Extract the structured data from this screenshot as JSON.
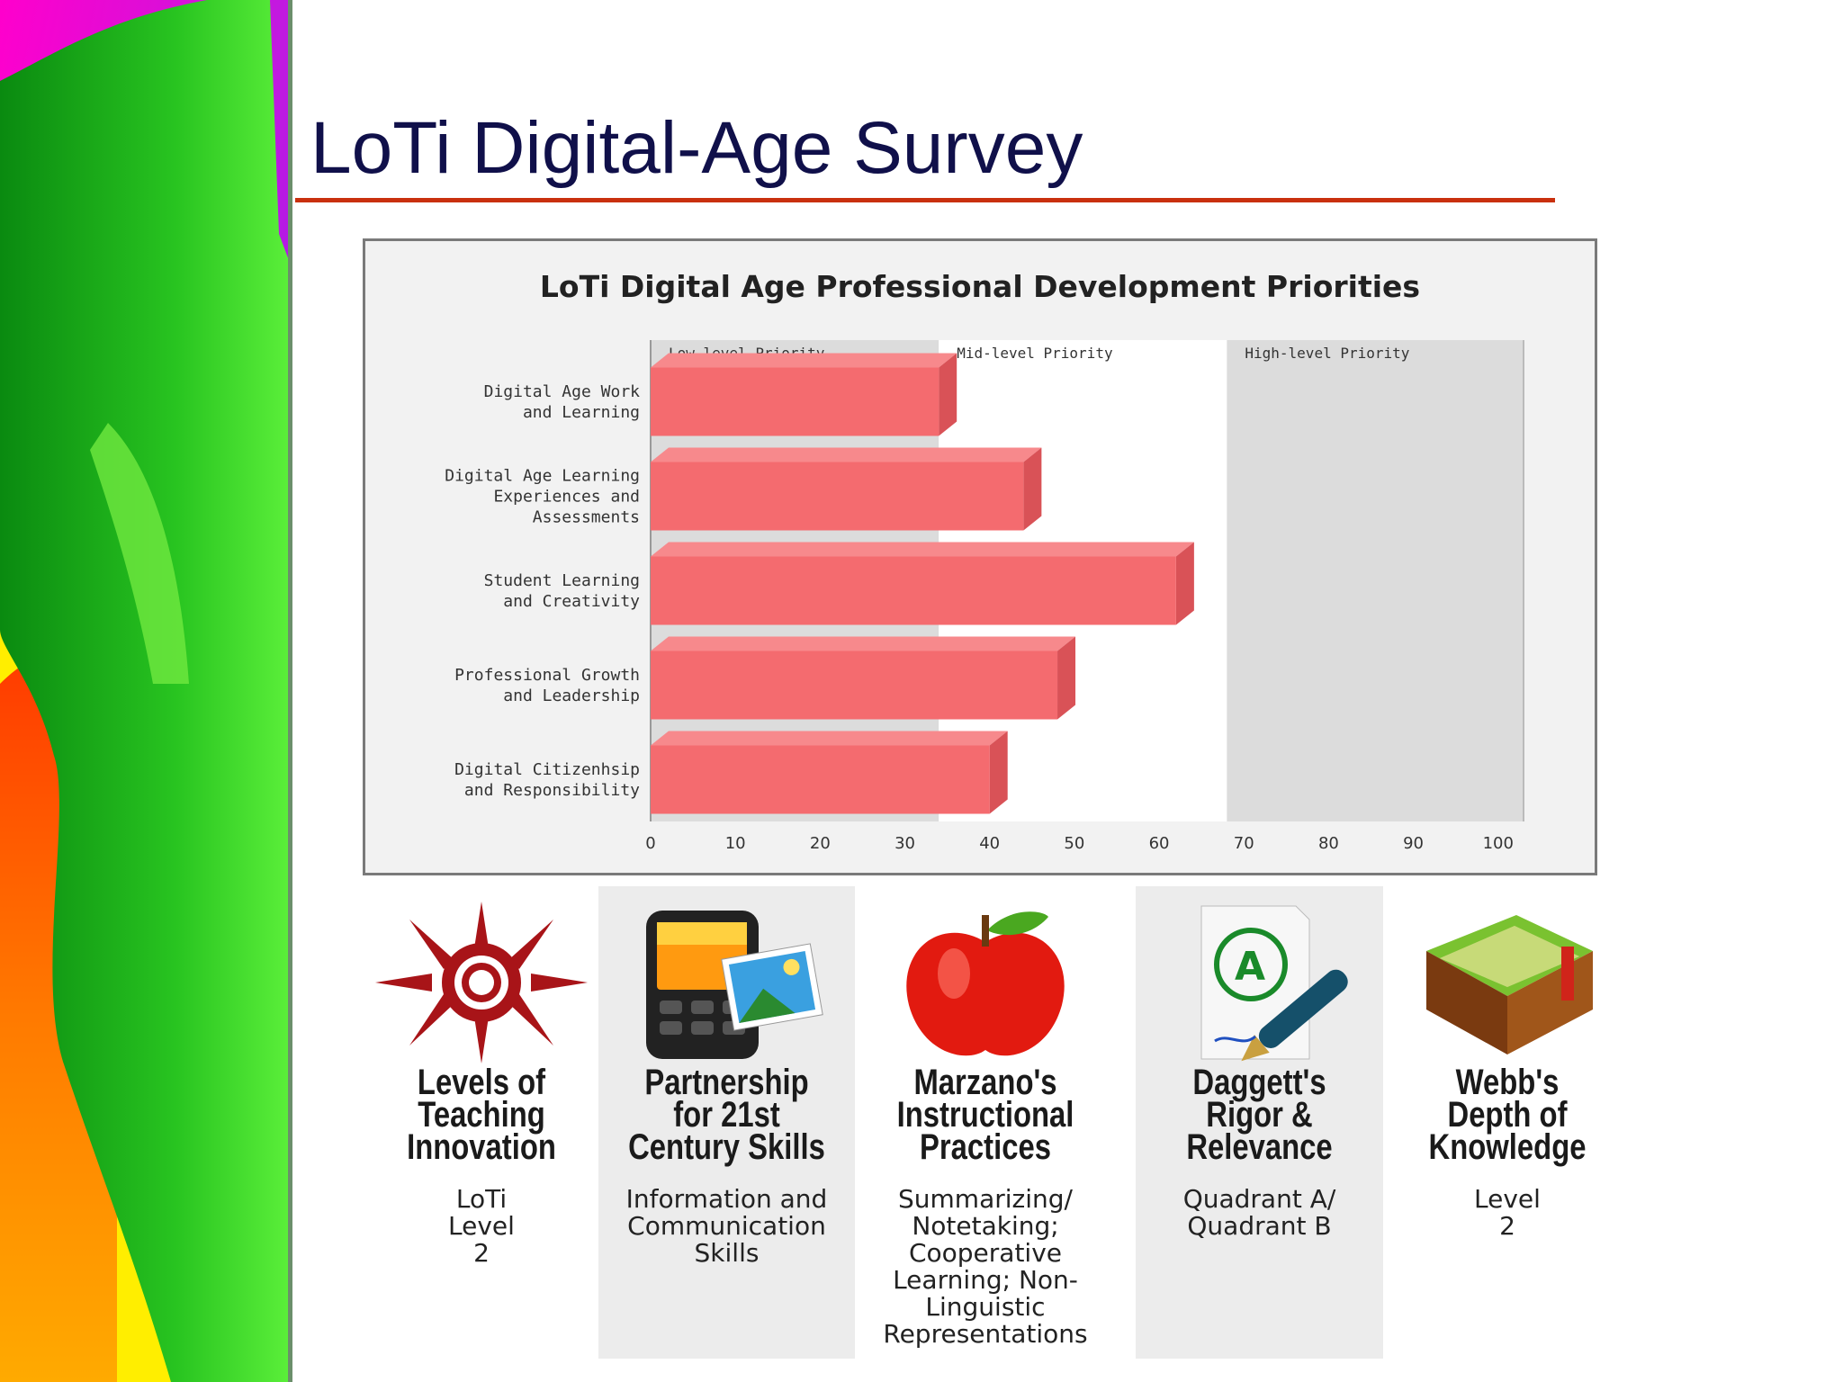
{
  "slide": {
    "title": "LoTi Digital-Age Survey",
    "accent_color": "#c9300e"
  },
  "chart_data": {
    "type": "bar",
    "orientation": "horizontal",
    "title": "LoTi Digital Age Professional Development Priorities",
    "categories": [
      [
        "Digital Age Work",
        "and Learning"
      ],
      [
        "Digital Age Learning",
        "Experiences and",
        "Assessments"
      ],
      [
        "Student Learning",
        "and Creativity"
      ],
      [
        "Professional Growth",
        "and Leadership"
      ],
      [
        "Digital Citizenhsip",
        "and Responsibility"
      ]
    ],
    "values": [
      34,
      44,
      62,
      48,
      40
    ],
    "xlim": [
      0,
      100
    ],
    "ticks": [
      "0",
      "10",
      "20",
      "30",
      "40",
      "50",
      "60",
      "70",
      "80",
      "90",
      "100"
    ],
    "zones": [
      {
        "label": "Low-level Priority",
        "from": 0,
        "to": 34
      },
      {
        "label": "Mid-level Priority",
        "from": 34,
        "to": 68
      },
      {
        "label": "High-level Priority",
        "from": 68,
        "to": 103
      }
    ],
    "bar_color": "#f46b6f",
    "bar_side_color": "#d95257",
    "legend": "none",
    "grid": false
  },
  "panels": [
    {
      "name": [
        "Levels of",
        "Teaching",
        "Innovation"
      ],
      "detail": [
        "LoTi",
        "Level",
        "2"
      ],
      "icon": "sun-icon",
      "shaded": false
    },
    {
      "name": [
        "Partnership",
        "for 21st",
        "Century Skills"
      ],
      "detail": [
        "Information and",
        "Communication",
        "Skills"
      ],
      "icon": "phone-photo-icon",
      "shaded": true
    },
    {
      "name": [
        "Marzano's",
        "Instructional",
        "Practices"
      ],
      "detail": [
        "Summarizing/",
        "Notetaking;",
        "Cooperative",
        "Learning; Non-",
        "Linguistic",
        "Representations"
      ],
      "icon": "apple-icon",
      "shaded": false
    },
    {
      "name": [
        "Daggett's",
        "Rigor &",
        "Relevance"
      ],
      "detail": [
        "Quadrant A/",
        "Quadrant B"
      ],
      "icon": "graded-paper-pen-icon",
      "shaded": true
    },
    {
      "name": [
        "Webb's",
        "Depth of",
        "Knowledge"
      ],
      "detail": [
        "Level",
        "2"
      ],
      "icon": "book-icon",
      "shaded": false
    }
  ]
}
